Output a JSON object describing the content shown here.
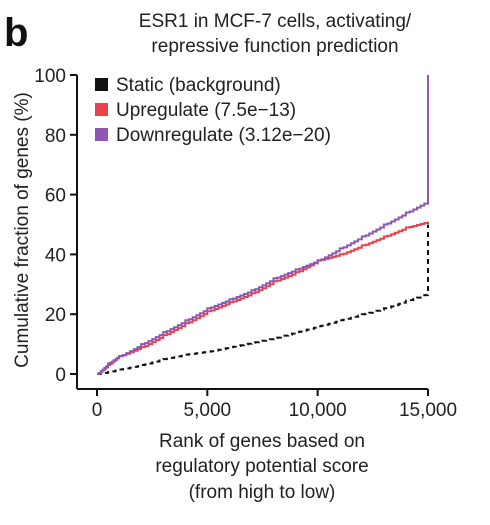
{
  "panel_letter": "b",
  "chart_data": {
    "type": "line",
    "title": [
      "ESR1 in MCF-7 cells, activating/",
      "repressive function prediction"
    ],
    "xlabel": [
      "Rank of genes based on",
      "regulatory potential score",
      "(from high to low)"
    ],
    "ylabel": "Cumulative fraction of genes (%)",
    "xlim": [
      0,
      15000
    ],
    "ylim": [
      0,
      100
    ],
    "xticks": [
      0,
      5000,
      10000,
      15000
    ],
    "xtick_labels": [
      "0",
      "5,000",
      "10,000",
      "15,000"
    ],
    "yticks": [
      0,
      20,
      40,
      60,
      80,
      100
    ],
    "ytick_labels": [
      "0",
      "20",
      "40",
      "60",
      "80",
      "100"
    ],
    "grid": false,
    "legend_position": "top-left",
    "series": [
      {
        "name": "Static (background)",
        "color": "#111111",
        "style": "dashed",
        "x": [
          0,
          1000,
          2000,
          3000,
          4000,
          5000,
          6000,
          7000,
          8000,
          9000,
          10000,
          11000,
          12000,
          13000,
          14000,
          15000,
          15000
        ],
        "y": [
          0,
          1.5,
          3,
          5,
          6.5,
          7.5,
          9,
          10.5,
          12,
          14,
          16,
          18,
          20,
          22,
          24.5,
          27,
          50
        ]
      },
      {
        "name": "Upregulate (7.5e−13)",
        "color": "#e8424a",
        "style": "solid",
        "x": [
          0,
          500,
          1000,
          2000,
          3000,
          4000,
          5000,
          6000,
          7000,
          8000,
          9000,
          10000,
          11000,
          12000,
          13000,
          14000,
          15000
        ],
        "y": [
          0,
          3,
          6,
          9,
          13,
          17,
          21,
          24,
          27,
          31,
          34,
          38,
          40,
          43,
          46,
          49,
          51
        ]
      },
      {
        "name": "Downregulate (3.12e−20)",
        "color": "#8e57b3",
        "style": "solid",
        "x": [
          0,
          500,
          1000,
          2000,
          3000,
          4000,
          5000,
          6000,
          7000,
          8000,
          9000,
          10000,
          11000,
          12000,
          13000,
          14000,
          15000,
          15000
        ],
        "y": [
          0,
          3.5,
          6,
          10,
          14,
          18,
          22,
          25,
          28,
          32,
          35,
          38,
          42,
          46,
          50,
          54,
          58,
          100
        ]
      }
    ]
  }
}
